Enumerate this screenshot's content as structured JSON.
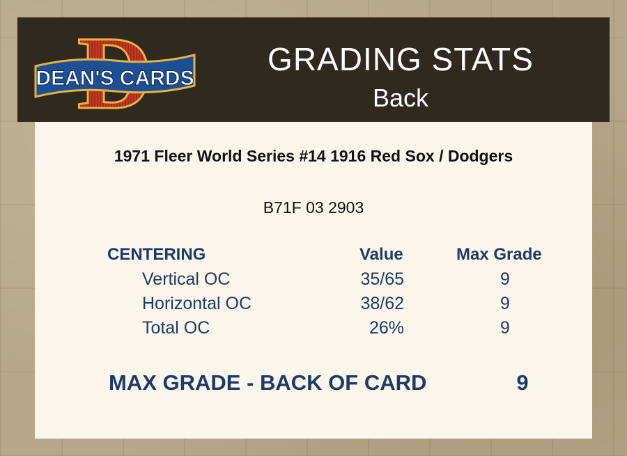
{
  "header": {
    "logo_text": "DEAN'S CARDS",
    "logo_letter": "D",
    "title": "GRADING STATS",
    "subtitle": "Back"
  },
  "card": {
    "title": "1971 Fleer World Series #14  1916 Red Sox / Dodgers",
    "cert": "B71F 03 2903"
  },
  "stats": {
    "headers": {
      "section": "CENTERING",
      "value": "Value",
      "max_grade": "Max Grade"
    },
    "rows": [
      {
        "label": "Vertical OC",
        "value": "35/65",
        "max_grade": "9"
      },
      {
        "label": "Horizontal OC",
        "value": "38/62",
        "max_grade": "9"
      },
      {
        "label": "Total OC",
        "value": "26%",
        "max_grade": "9"
      }
    ]
  },
  "final": {
    "label": "MAX GRADE - BACK OF CARD",
    "value": "9"
  },
  "colors": {
    "header_bg": "#2f2920",
    "panel_bg": "#fbf6ec",
    "stat_text": "#1f3a66",
    "logo_red": "#c23a26",
    "logo_blue": "#1d4f97",
    "logo_gold": "#e8b23c"
  }
}
